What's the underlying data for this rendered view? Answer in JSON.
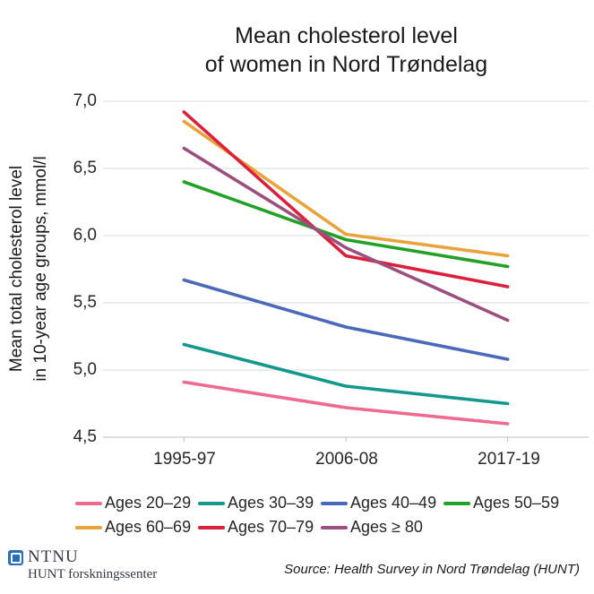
{
  "title": {
    "line1": "Mean cholesterol level",
    "line2": "of women in Nord Trøndelag"
  },
  "chart_data": {
    "type": "line",
    "title": "Mean cholesterol level of women in Nord Trøndelag",
    "categories": [
      "1995-97",
      "2006-08",
      "2017-19"
    ],
    "series": [
      {
        "name": "Ages 20–29",
        "color": "#ee6a8e",
        "values": [
          4.91,
          4.72,
          4.6
        ]
      },
      {
        "name": "Ages 30–39",
        "color": "#14978c",
        "values": [
          5.19,
          4.88,
          4.75
        ]
      },
      {
        "name": "Ages 40–49",
        "color": "#4c68bb",
        "values": [
          5.67,
          5.32,
          5.08
        ]
      },
      {
        "name": "Ages 50–59",
        "color": "#23a127",
        "values": [
          6.4,
          5.97,
          5.77
        ]
      },
      {
        "name": "Ages 60–69",
        "color": "#e9a33b",
        "values": [
          6.85,
          6.01,
          5.85
        ]
      },
      {
        "name": "Ages 70–79",
        "color": "#dc203c",
        "values": [
          6.92,
          5.85,
          5.62
        ]
      },
      {
        "name": "Ages ≥ 80",
        "color": "#9c4f7e",
        "values": [
          6.65,
          5.91,
          5.37
        ]
      }
    ],
    "ylabel": "Mean total cholesterol level in 10-year age groups, mmol/l",
    "ylabel_lines": [
      "Mean total cholesterol level",
      "in 10-year age groups, mmol/l"
    ],
    "xlabel": "",
    "ylim": [
      4.5,
      7.0
    ],
    "y_tick_labels": [
      "7,0",
      "6,5",
      "6,0",
      "5,5",
      "5,0",
      "4,5"
    ],
    "y_tick_values": [
      7.0,
      6.5,
      6.0,
      5.5,
      5.0,
      4.5
    ],
    "grid": true,
    "legend_position": "bottom"
  },
  "legend": {
    "row1": [
      "Ages 20–29",
      "Ages 30–39",
      "Ages 40–49",
      "Ages 50–59"
    ],
    "row2": [
      "Ages 60–69",
      "Ages 70–79",
      "Ages ≥ 80"
    ]
  },
  "footer": {
    "brand": "NTNU",
    "brand_subtitle": "HUNT forskningssenter",
    "brand_color": "#2a6ebb",
    "source": "Source: Health Survey in Nord Trøndelag (HUNT)"
  },
  "colors": {
    "gridline": "#d9d9d9",
    "axis_line": "#bfbfbf",
    "text": "#262626"
  }
}
